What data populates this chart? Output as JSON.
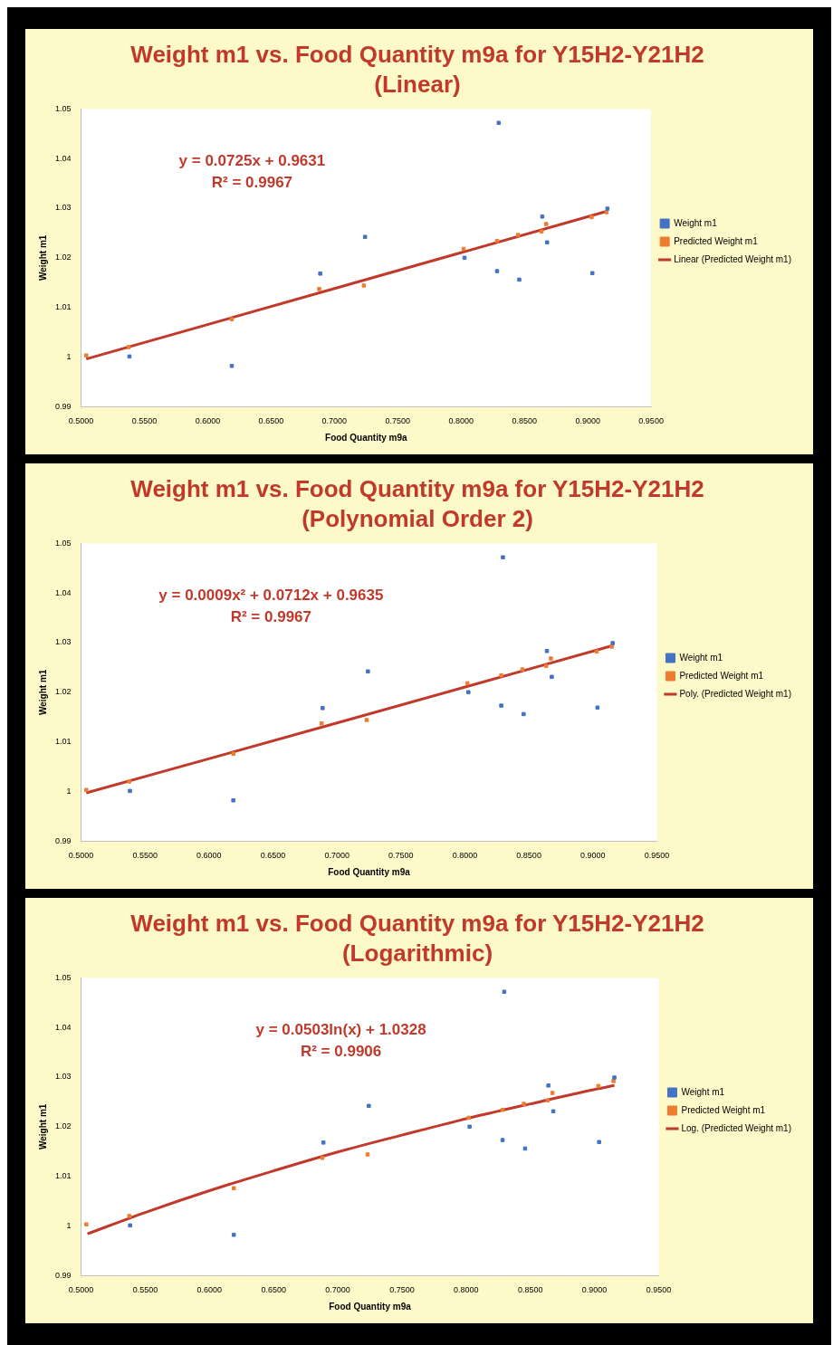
{
  "chart_data": [
    {
      "type": "scatter",
      "title": "Weight m1 vs. Food Quantity m9a for Y15H2-Y21H2",
      "subtitle": "(Linear)",
      "xlabel": "Food Quantity m9a",
      "ylabel": "Weight m1",
      "annotations": [
        "y = 0.0725x + 0.9631",
        "R² = 0.9967"
      ],
      "series": [
        {
          "name": "Weight m1",
          "color": "#4472c4",
          "marker": "square",
          "x": [
            0.5382,
            0.619,
            0.6888,
            0.7242,
            0.8027,
            0.8297,
            0.8284,
            0.8459,
            0.8641,
            0.8679,
            0.9036,
            0.9155
          ],
          "values": [
            1.0001,
            0.9982,
            1.0168,
            1.0242,
            1.02,
            1.0472,
            1.0173,
            1.0156,
            1.0283,
            1.0231,
            1.0169,
            1.0299
          ]
        },
        {
          "name": "Predicted Weight m1",
          "color": "#ed7d31",
          "marker": "square",
          "x": [
            0.5041,
            0.5376,
            0.619,
            0.688,
            0.7232,
            0.802,
            0.8284,
            0.845,
            0.8635,
            0.8672,
            0.903,
            0.9148
          ],
          "values": [
            1.0003,
            1.002,
            1.0076,
            1.0137,
            1.0144,
            1.0218,
            1.0234,
            1.0246,
            1.0253,
            1.0268,
            1.0282,
            1.0292
          ]
        },
        {
          "name": "Linear (Predicted Weight m1)",
          "type": "line",
          "color": "#c0392b",
          "marker": "none",
          "x": [
            0.5041,
            0.9155
          ],
          "values": [
            0.9996,
            1.0294
          ]
        }
      ],
      "xlim": [
        0.5,
        0.95
      ],
      "xticks": [
        {
          "value": 0.5,
          "label": "0.5000"
        },
        {
          "value": 0.55,
          "label": "0.5500"
        },
        {
          "value": 0.6,
          "label": "0.6000"
        },
        {
          "value": 0.65,
          "label": "0.6500"
        },
        {
          "value": 0.7,
          "label": "0.7000"
        },
        {
          "value": 0.75,
          "label": "0.7500"
        },
        {
          "value": 0.8,
          "label": "0.8000"
        },
        {
          "value": 0.85,
          "label": "0.8500"
        },
        {
          "value": 0.9,
          "label": "0.9000"
        },
        {
          "value": 0.95,
          "label": "0.9500"
        }
      ],
      "ylim": [
        0.99,
        1.05
      ],
      "yticks": [
        0.99,
        1,
        1.01,
        1.02,
        1.03,
        1.04,
        1.05
      ],
      "grid": false,
      "legend": "right"
    },
    {
      "type": "scatter",
      "title": "Weight m1 vs. Food Quantity m9a for Y15H2-Y21H2",
      "subtitle": "(Polynomial Order 2)",
      "xlabel": "Food Quantity m9a",
      "ylabel": "Weight m1",
      "annotations": [
        "y = 0.0009x² + 0.0712x + 0.9635",
        "R² = 0.9967"
      ],
      "series": [
        {
          "name": "Weight m1",
          "color": "#4472c4",
          "marker": "square",
          "x": [
            0.5382,
            0.619,
            0.6888,
            0.7242,
            0.8027,
            0.8297,
            0.8284,
            0.8459,
            0.8641,
            0.8679,
            0.9036,
            0.9155
          ],
          "values": [
            1.0001,
            0.9982,
            1.0168,
            1.0242,
            1.02,
            1.0472,
            1.0173,
            1.0156,
            1.0283,
            1.0231,
            1.0169,
            1.0299
          ]
        },
        {
          "name": "Predicted Weight m1",
          "color": "#ed7d31",
          "marker": "square",
          "x": [
            0.5041,
            0.5376,
            0.619,
            0.688,
            0.7232,
            0.802,
            0.8284,
            0.845,
            0.8635,
            0.8672,
            0.903,
            0.9148
          ],
          "values": [
            1.0003,
            1.002,
            1.0076,
            1.0137,
            1.0144,
            1.0218,
            1.0234,
            1.0246,
            1.0253,
            1.0268,
            1.0282,
            1.0292
          ]
        },
        {
          "name": "Poly. (Predicted Weight m1)",
          "type": "line",
          "color": "#c0392b",
          "marker": "none",
          "x": [
            0.5041,
            0.7,
            0.9155
          ],
          "values": [
            0.9997,
            1.0138,
            1.0294
          ]
        }
      ],
      "xlim": [
        0.5,
        0.95
      ],
      "xticks": [
        {
          "value": 0.5,
          "label": "0.5000"
        },
        {
          "value": 0.55,
          "label": "0.5500"
        },
        {
          "value": 0.6,
          "label": "0.6000"
        },
        {
          "value": 0.65,
          "label": "0.6500"
        },
        {
          "value": 0.7,
          "label": "0.7000"
        },
        {
          "value": 0.75,
          "label": "0.7500"
        },
        {
          "value": 0.8,
          "label": "0.8000"
        },
        {
          "value": 0.85,
          "label": "0.8500"
        },
        {
          "value": 0.9,
          "label": "0.9000"
        },
        {
          "value": 0.95,
          "label": "0.9500"
        }
      ],
      "ylim": [
        0.99,
        1.05
      ],
      "yticks": [
        0.99,
        1,
        1.01,
        1.02,
        1.03,
        1.04,
        1.05
      ],
      "grid": false,
      "legend": "right"
    },
    {
      "type": "scatter",
      "title": "Weight m1 vs. Food Quantity m9a for Y15H2-Y21H2",
      "subtitle": "(Logarithmic)",
      "xlabel": "Food Quantity m9a",
      "ylabel": "Weight m1",
      "annotations": [
        "y = 0.0503ln(x) + 1.0328",
        "R² = 0.9906"
      ],
      "series": [
        {
          "name": "Weight m1",
          "color": "#4472c4",
          "marker": "square",
          "x": [
            0.5382,
            0.619,
            0.6888,
            0.7242,
            0.8027,
            0.8297,
            0.8284,
            0.8459,
            0.8641,
            0.8679,
            0.9036,
            0.9155
          ],
          "values": [
            1.0001,
            0.9982,
            1.0168,
            1.0242,
            1.02,
            1.0472,
            1.0173,
            1.0156,
            1.0283,
            1.0231,
            1.0169,
            1.0299
          ]
        },
        {
          "name": "Predicted Weight m1",
          "color": "#ed7d31",
          "marker": "square",
          "x": [
            0.5041,
            0.5376,
            0.619,
            0.688,
            0.7232,
            0.802,
            0.8284,
            0.845,
            0.8635,
            0.8672,
            0.903,
            0.9148
          ],
          "values": [
            1.0003,
            1.002,
            1.0076,
            1.0137,
            1.0144,
            1.0218,
            1.0234,
            1.0246,
            1.0253,
            1.0268,
            1.0282,
            1.0292
          ]
        },
        {
          "name": "Log. (Predicted Weight m1)",
          "type": "line",
          "color": "#c0392b",
          "marker": "none",
          "x": [
            0.505,
            0.55,
            0.6,
            0.65,
            0.7,
            0.75,
            0.8,
            0.85,
            0.9,
            0.9155
          ],
          "values": [
            0.9984,
            1.0027,
            1.0071,
            1.0111,
            1.0149,
            1.0183,
            1.0216,
            1.0246,
            1.0275,
            1.0283
          ]
        }
      ],
      "xlim": [
        0.5,
        0.95
      ],
      "xticks": [
        {
          "value": 0.5,
          "label": "0.5000"
        },
        {
          "value": 0.55,
          "label": "0.5500"
        },
        {
          "value": 0.6,
          "label": "0.6000"
        },
        {
          "value": 0.65,
          "label": "0.6500"
        },
        {
          "value": 0.7,
          "label": "0.7000"
        },
        {
          "value": 0.75,
          "label": "0.7500"
        },
        {
          "value": 0.8,
          "label": "0.8000"
        },
        {
          "value": 0.85,
          "label": "0.8500"
        },
        {
          "value": 0.9,
          "label": "0.9000"
        },
        {
          "value": 0.95,
          "label": "0.9500"
        }
      ],
      "ylim": [
        0.99,
        1.05
      ],
      "yticks": [
        0.99,
        1,
        1.01,
        1.02,
        1.03,
        1.04,
        1.05
      ],
      "grid": false,
      "legend": "right"
    }
  ]
}
